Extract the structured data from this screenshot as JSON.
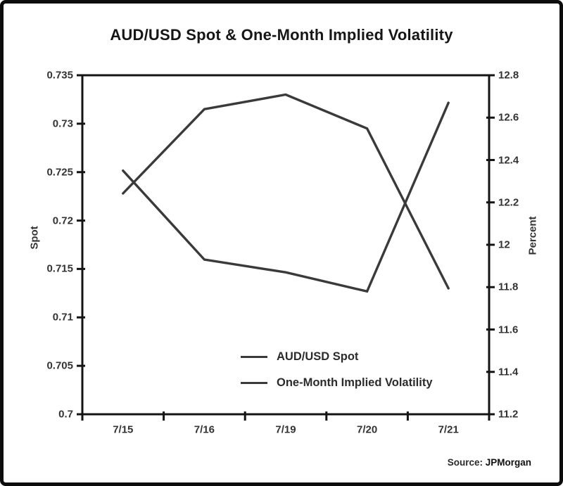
{
  "chart_data": {
    "type": "line",
    "title": "AUD/USD Spot & One-Month Implied Volatility",
    "categories": [
      "7/15",
      "7/16",
      "7/19",
      "7/20",
      "7/21"
    ],
    "series": [
      {
        "name": "AUD/USD Spot",
        "axis": "left",
        "color": "#3a3a3a",
        "values": [
          0.7228,
          0.7315,
          0.733,
          0.7295,
          0.713
        ]
      },
      {
        "name": "One-Month Implied Volatility",
        "axis": "right",
        "color": "#3a3a3a",
        "values": [
          12.35,
          11.93,
          11.87,
          11.78,
          12.67
        ]
      }
    ],
    "left_axis": {
      "label": "Spot",
      "min": 0.7,
      "max": 0.735,
      "ticks": [
        "0.735",
        "0.73",
        "0.725",
        "0.72",
        "0.715",
        "0.71",
        "0.705",
        "0.7"
      ]
    },
    "right_axis": {
      "label": "Percent",
      "min": 11.2,
      "max": 12.8,
      "ticks": [
        "12.8",
        "12.6",
        "12.4",
        "12.2",
        "12",
        "11.8",
        "11.6",
        "11.4",
        "11.2"
      ]
    },
    "grid": false,
    "legend_position": "inside-bottom-center",
    "axis_color": "#141414"
  },
  "source": {
    "prefix": "Source:",
    "org": "JPMorgan"
  }
}
